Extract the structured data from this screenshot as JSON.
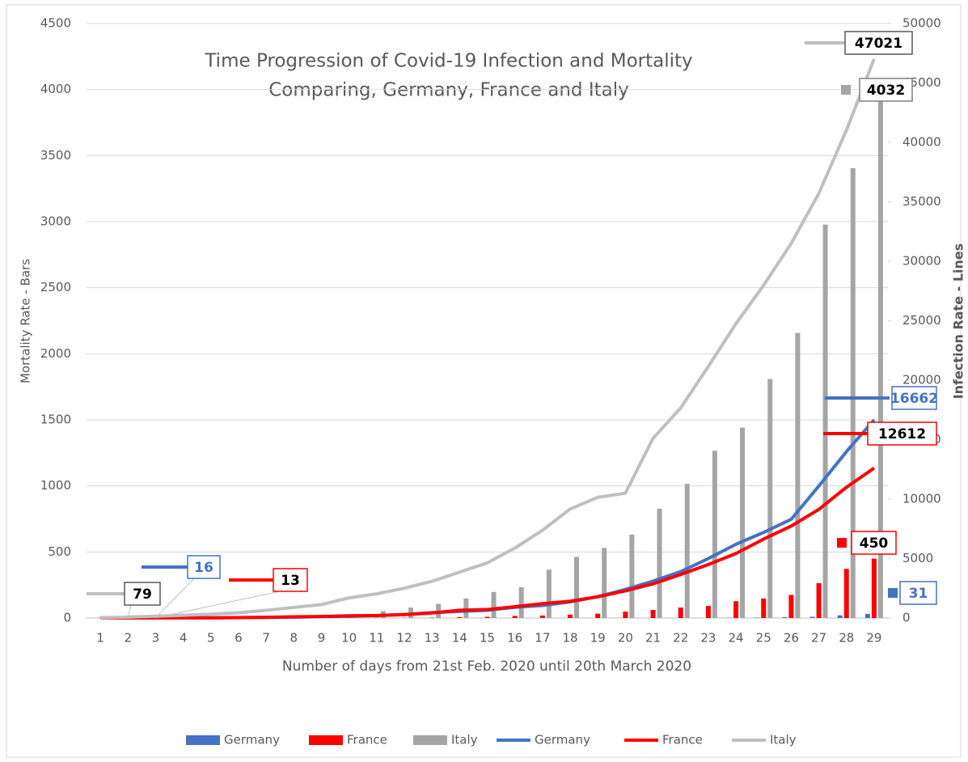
{
  "chart_data": {
    "type": "bar",
    "title": [
      "Time Progression of Covid-19 Infection and Mortality",
      "Comparing, Germany, France and Italy"
    ],
    "x_label": "Number of days from 21st Feb. 2020 until 20th March 2020",
    "y_label": "Mortality Rate - Bars",
    "y2_label": "Infection Rate - Lines",
    "categories": [
      "1",
      "2",
      "3",
      "4",
      "5",
      "6",
      "7",
      "8",
      "9",
      "10",
      "11",
      "12",
      "13",
      "14",
      "15",
      "16",
      "17",
      "18",
      "19",
      "20",
      "21",
      "22",
      "23",
      "24",
      "25",
      "26",
      "27",
      "28",
      "29"
    ],
    "ylim": [
      0,
      4500
    ],
    "yticks": [
      0,
      500,
      1000,
      1500,
      2000,
      2500,
      3000,
      3500,
      4000,
      4500
    ],
    "y2lim": [
      0,
      50000
    ],
    "y2ticks": [
      0,
      5000,
      10000,
      15000,
      20000,
      25000,
      30000,
      35000,
      40000,
      45000,
      50000
    ],
    "grid": true,
    "legend": "bottom",
    "series": [
      {
        "name": "Germany",
        "type": "bar",
        "color": "#4472c4",
        "values": [
          0,
          0,
          0,
          0,
          0,
          0,
          0,
          0,
          0,
          0,
          0,
          0,
          0,
          0,
          0,
          0,
          0,
          0,
          0,
          0,
          0,
          0,
          0,
          2,
          3,
          6,
          9,
          20,
          31
        ]
      },
      {
        "name": "France",
        "type": "bar",
        "color": "#ff0000",
        "values": [
          2,
          2,
          2,
          2,
          2,
          2,
          2,
          2,
          2,
          2,
          2,
          2,
          3,
          7,
          9,
          16,
          19,
          25,
          33,
          48,
          61,
          79,
          91,
          127,
          148,
          175,
          264,
          372,
          450
        ]
      },
      {
        "name": "Italy",
        "type": "bar",
        "color": "#a5a5a5",
        "values": [
          0,
          1,
          2,
          3,
          7,
          10,
          12,
          17,
          21,
          29,
          52,
          79,
          107,
          148,
          197,
          233,
          366,
          463,
          531,
          631,
          827,
          1016,
          1266,
          1441,
          1809,
          2158,
          2978,
          3405,
          4032
        ]
      },
      {
        "name": "Germany",
        "type": "line",
        "axis": "y2",
        "color": "#4472c4",
        "values": [
          16,
          16,
          16,
          16,
          20,
          30,
          50,
          70,
          120,
          150,
          200,
          300,
          450,
          550,
          650,
          900,
          1050,
          1350,
          1800,
          2400,
          3100,
          3900,
          5000,
          6200,
          7200,
          8300,
          11100,
          14000,
          16662
        ]
      },
      {
        "name": "France",
        "type": "line",
        "axis": "y2",
        "color": "#ff0000",
        "values": [
          12,
          12,
          13,
          14,
          18,
          38,
          57,
          100,
          130,
          191,
          212,
          285,
          423,
          653,
          716,
          949,
          1209,
          1412,
          1784,
          2284,
          2876,
          3661,
          4499,
          5423,
          6633,
          7730,
          9134,
          10995,
          12612
        ]
      },
      {
        "name": "Italy",
        "type": "line",
        "axis": "y2",
        "color": "#bfbfbf",
        "values": [
          20,
          79,
          150,
          227,
          320,
          445,
          650,
          888,
          1128,
          1694,
          2036,
          2502,
          3089,
          3858,
          4636,
          5883,
          7375,
          9172,
          10149,
          10500,
          15113,
          17660,
          21157,
          24747,
          27980,
          31506,
          35713,
          41035,
          47021
        ]
      }
    ]
  }
}
